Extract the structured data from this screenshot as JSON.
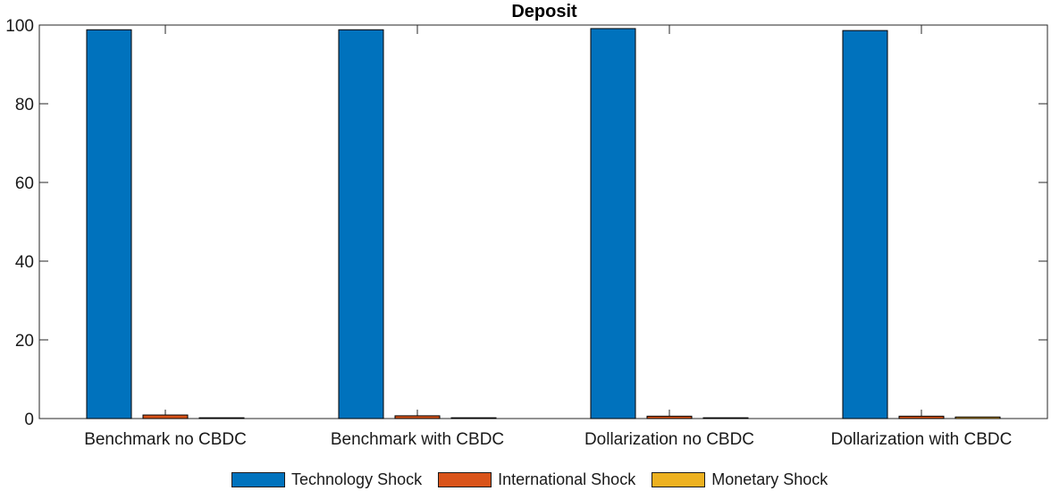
{
  "chart_data": {
    "type": "bar",
    "title": "Deposit",
    "xlabel": "",
    "ylabel": "",
    "categories": [
      "Benchmark no CBDC",
      "Benchmark with CBDC",
      "Dollarization no CBDC",
      "Dollarization with CBDC"
    ],
    "ylim": [
      0,
      100
    ],
    "yticks": [
      "0",
      "20",
      "40",
      "60",
      "80",
      "100"
    ],
    "series": [
      {
        "name": "Technology Shock",
        "color": "#0072BD",
        "values": [
          98.8,
          98.8,
          99.1,
          98.6
        ]
      },
      {
        "name": "International Shock",
        "color": "#D95319",
        "values": [
          0.9,
          0.7,
          0.6,
          0.6
        ]
      },
      {
        "name": "Monetary Shock",
        "color": "#EDB120",
        "values": [
          0.2,
          0.2,
          0.2,
          0.4
        ]
      }
    ],
    "grid": false,
    "legend_position": "bottom"
  }
}
